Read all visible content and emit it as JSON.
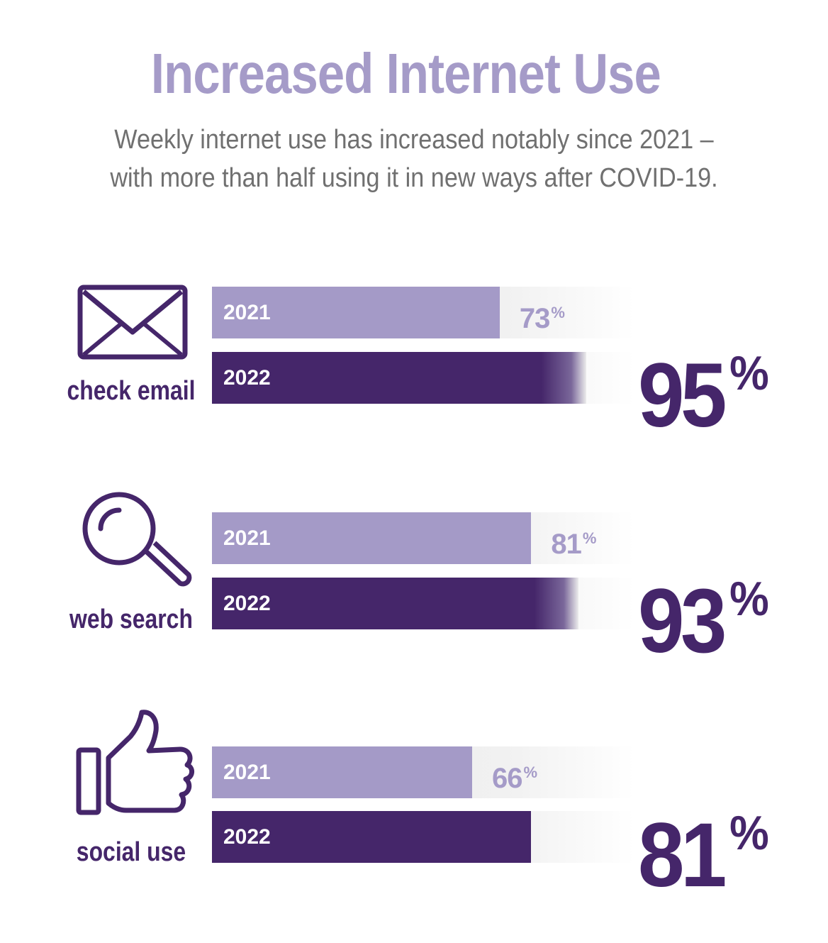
{
  "title": "Increased Internet Use",
  "subtitle": {
    "line1": "Weekly internet use has increased notably since 2021 –",
    "line2": "with more than half using it in new ways after COVID-19."
  },
  "colors": {
    "title": "#a59bc8",
    "bar_2021": "#a49ac7",
    "bar_2022": "#45266a",
    "track": "#ececec",
    "text_gray": "#707070"
  },
  "chart_data": {
    "type": "bar",
    "orientation": "horizontal",
    "categories": [
      "check email",
      "web search",
      "social use"
    ],
    "icons": [
      "envelope-icon",
      "magnifier-icon",
      "thumbs-up-icon"
    ],
    "series": [
      {
        "name": "2021",
        "values": [
          73,
          81,
          66
        ]
      },
      {
        "name": "2022",
        "values": [
          95,
          93,
          81
        ]
      }
    ],
    "value_labels_2021": [
      "73",
      "81",
      "66"
    ],
    "value_labels_2022": [
      "95",
      "93",
      "81"
    ],
    "percent_symbol": "%",
    "xlim": [
      0,
      100
    ],
    "grid": false,
    "legend": "none"
  }
}
